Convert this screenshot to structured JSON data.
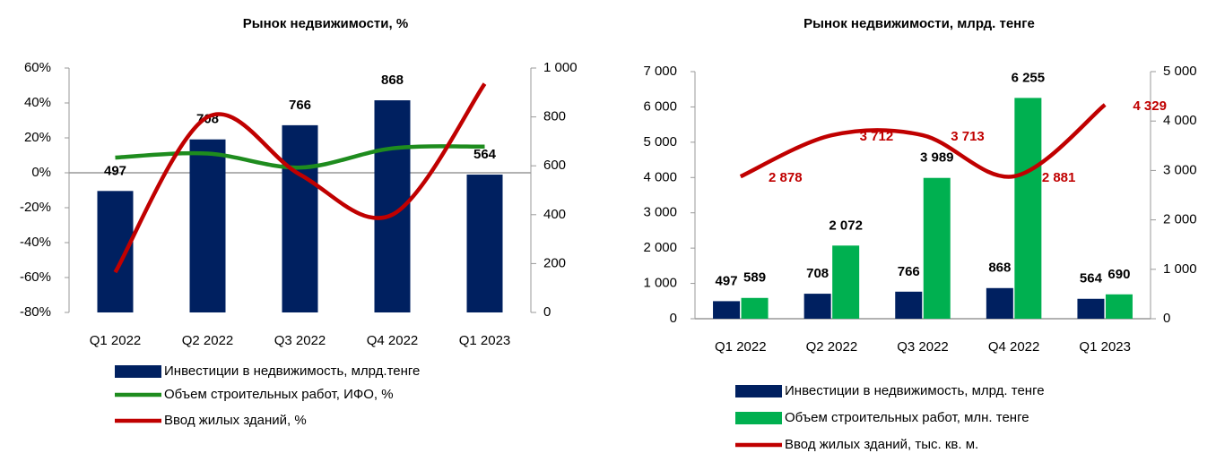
{
  "chart_data": [
    {
      "type": "bar",
      "title": "Рынок недвижимости, %",
      "categories": [
        "Q1 2022",
        "Q2 2022",
        "Q3 2022",
        "Q4 2022",
        "Q1 2023"
      ],
      "ylim": [
        -80,
        60
      ],
      "yticks": [
        {
          "value": -80,
          "label": "-80%"
        },
        {
          "value": -60,
          "label": "-60%"
        },
        {
          "value": -40,
          "label": "-40%"
        },
        {
          "value": -20,
          "label": "-20%"
        },
        {
          "value": 0,
          "label": "0%"
        },
        {
          "value": 20,
          "label": "20%"
        },
        {
          "value": 40,
          "label": "40%"
        },
        {
          "value": 60,
          "label": "60%"
        }
      ],
      "y2lim": [
        0,
        1000
      ],
      "y2ticks": [
        0,
        200,
        400,
        600,
        800,
        {
          "value": 1000,
          "label": "1 000"
        }
      ],
      "series": [
        {
          "name": "Инвестиции в недвижимость, млрд.тенге",
          "color": "#002060",
          "type": "bar",
          "axis": "y2",
          "show_labels": true,
          "values": [
            497,
            708,
            766,
            868,
            564
          ]
        },
        {
          "name": "Объем строительных работ, ИФО, %",
          "color": "#1e8c1e",
          "type": "line",
          "values": [
            8.7,
            11,
            3,
            14,
            15
          ]
        },
        {
          "name": "Ввод жилых зданий, %",
          "color": "#c00000",
          "type": "line",
          "values": [
            -57,
            32,
            -1,
            -24,
            51
          ]
        }
      ]
    },
    {
      "type": "bar",
      "title": "Рынок недвижимости, млрд. тенге",
      "categories": [
        "Q1 2022",
        "Q2 2022",
        "Q3 2022",
        "Q4 2022",
        "Q1 2023"
      ],
      "ylim": [
        0,
        7000
      ],
      "yticks": [
        0,
        {
          "value": 1000,
          "label": "1 000"
        },
        {
          "value": 2000,
          "label": "2 000"
        },
        {
          "value": 3000,
          "label": "3 000"
        },
        {
          "value": 4000,
          "label": "4 000"
        },
        {
          "value": 5000,
          "label": "5 000"
        },
        {
          "value": 6000,
          "label": "6 000"
        },
        {
          "value": 7000,
          "label": "7 000"
        }
      ],
      "y2lim": [
        0,
        5000
      ],
      "y2ticks": [
        0,
        {
          "value": 1000,
          "label": "1 000"
        },
        {
          "value": 2000,
          "label": "2 000"
        },
        {
          "value": 3000,
          "label": "3 000"
        },
        {
          "value": 4000,
          "label": "4 000"
        },
        {
          "value": 5000,
          "label": "5 000"
        }
      ],
      "series": [
        {
          "name": "Инвестиции в недвижимость, млрд. тенге",
          "color": "#002060",
          "type": "bar",
          "show_labels": true,
          "values": [
            497,
            708,
            766,
            868,
            564
          ]
        },
        {
          "name": "Объем строительных работ, млн. тенге",
          "color": "#00b050",
          "type": "bar",
          "show_labels": true,
          "values": [
            589,
            2072,
            3989,
            6255,
            690
          ],
          "value_labels": [
            "589",
            "2 072",
            "3 989",
            "6 255",
            "690"
          ]
        },
        {
          "name": "Ввод жилых зданий, тыс. кв. м.",
          "color": "#c00000",
          "type": "line",
          "axis": "y2",
          "show_labels": true,
          "values": [
            2878,
            3712,
            3713,
            2881,
            4329
          ],
          "value_labels": [
            "2 878",
            "3 712",
            "3 713",
            "2 881",
            "4 329"
          ]
        }
      ]
    }
  ]
}
